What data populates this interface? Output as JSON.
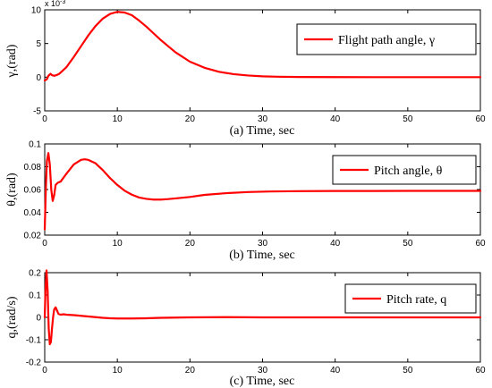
{
  "chart_data": [
    {
      "type": "line",
      "panel": "a",
      "xlabel": "(a) Time, sec",
      "ylabel": "γ,(rad)",
      "xlim": [
        0,
        60
      ],
      "ylim": [
        -5,
        10
      ],
      "exponent_label": "x 10",
      "exponent_power": "-3",
      "xticks": [
        "0",
        "10",
        "20",
        "30",
        "40",
        "50",
        "60"
      ],
      "yticks": [
        "-5",
        "0",
        "5",
        "10"
      ],
      "legend": "top-right",
      "color": "#ff0000",
      "series": [
        {
          "name": "Flight path angle, γ",
          "x": [
            0,
            0.3,
            0.5,
            0.8,
            1.0,
            1.3,
            1.6,
            2,
            3,
            4,
            5,
            6,
            7,
            8,
            9,
            10,
            11,
            12,
            13,
            14,
            15,
            16,
            17,
            18,
            20,
            22,
            24,
            26,
            28,
            30,
            32,
            35,
            40,
            45,
            50,
            55,
            60
          ],
          "y": [
            -0.5,
            -0.3,
            0.2,
            0.5,
            0.3,
            0.2,
            0.3,
            0.5,
            1.5,
            3.0,
            4.6,
            6.2,
            7.6,
            8.7,
            9.4,
            9.7,
            9.6,
            9.2,
            8.4,
            7.5,
            6.5,
            5.5,
            4.6,
            3.7,
            2.3,
            1.4,
            0.8,
            0.45,
            0.25,
            0.13,
            0.07,
            0.03,
            0.01,
            0.0,
            0.0,
            0.0,
            0.0
          ]
        }
      ]
    },
    {
      "type": "line",
      "panel": "b",
      "xlabel": "(b) Time, sec",
      "ylabel": "θ,(rad)",
      "xlim": [
        0,
        60
      ],
      "ylim": [
        0.02,
        0.1
      ],
      "xticks": [
        "0",
        "10",
        "20",
        "30",
        "40",
        "50",
        "60"
      ],
      "yticks": [
        "0.02",
        "0.04",
        "0.06",
        "0.08",
        "0.1"
      ],
      "legend": "top-right",
      "color": "#ff0000",
      "series": [
        {
          "name": "Pitch angle, θ",
          "x": [
            0,
            0.15,
            0.3,
            0.5,
            0.7,
            0.9,
            1.1,
            1.3,
            1.5,
            1.8,
            2.2,
            3,
            4,
            5,
            5.5,
            6,
            7,
            8,
            9,
            10,
            11,
            12,
            13,
            14,
            15,
            16,
            17,
            18,
            20,
            22,
            25,
            28,
            31,
            35,
            40,
            45,
            50,
            55,
            60
          ],
          "y": [
            0.025,
            0.06,
            0.085,
            0.092,
            0.082,
            0.06,
            0.05,
            0.055,
            0.064,
            0.066,
            0.067,
            0.074,
            0.082,
            0.086,
            0.0865,
            0.086,
            0.083,
            0.077,
            0.07,
            0.064,
            0.059,
            0.0555,
            0.053,
            0.0518,
            0.0512,
            0.0512,
            0.0516,
            0.0522,
            0.0535,
            0.0553,
            0.0568,
            0.0578,
            0.0583,
            0.0586,
            0.0587,
            0.0587,
            0.0588,
            0.0588,
            0.0588
          ]
        }
      ]
    },
    {
      "type": "line",
      "panel": "c",
      "xlabel": "(c) Time, sec",
      "ylabel": "q,(rad/s)",
      "xlim": [
        0,
        60
      ],
      "ylim": [
        -0.2,
        0.2
      ],
      "xticks": [
        "0",
        "10",
        "20",
        "30",
        "40",
        "50",
        "60"
      ],
      "yticks": [
        "-0.2",
        "-0.1",
        "0",
        "0.1",
        "0.2"
      ],
      "legend": "top-right",
      "color": "#ff0000",
      "series": [
        {
          "name": "Pitch rate, q",
          "x": [
            0,
            0.1,
            0.25,
            0.4,
            0.55,
            0.7,
            0.85,
            1.0,
            1.15,
            1.3,
            1.5,
            1.7,
            1.9,
            2.2,
            2.6,
            3,
            4,
            5,
            6,
            7,
            8,
            9,
            10,
            12,
            14,
            16,
            20,
            25,
            30,
            40,
            50,
            60
          ],
          "y": [
            0.0,
            0.12,
            0.21,
            0.12,
            -0.05,
            -0.12,
            -0.11,
            -0.05,
            0.0,
            0.035,
            0.045,
            0.03,
            0.015,
            0.012,
            0.014,
            0.012,
            0.01,
            0.007,
            0.004,
            0.001,
            -0.002,
            -0.004,
            -0.005,
            -0.005,
            -0.004,
            -0.002,
            0.0,
            0.001,
            0.0,
            0.0,
            0.0,
            0.0
          ]
        }
      ]
    }
  ]
}
